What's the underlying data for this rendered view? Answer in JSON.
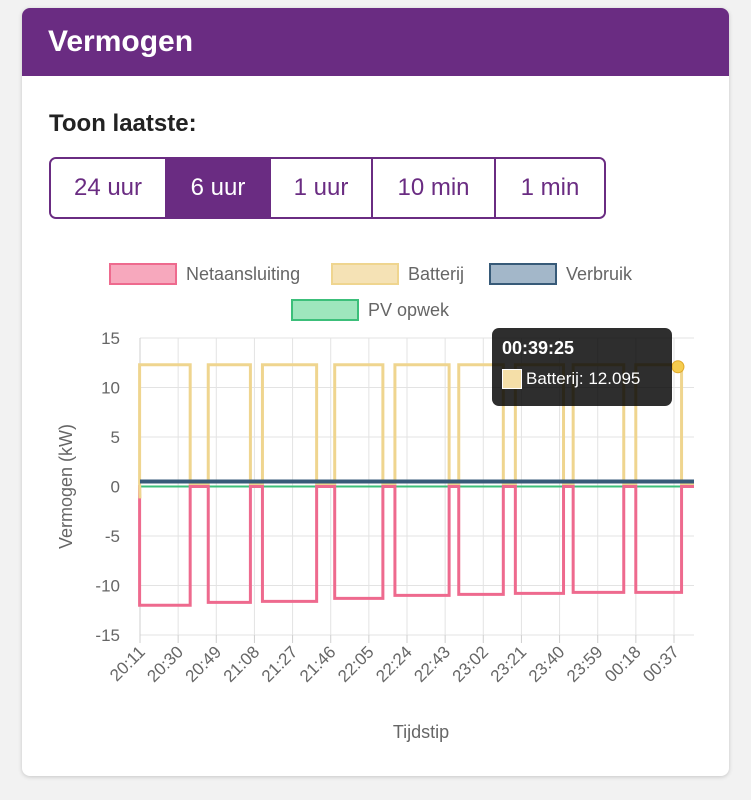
{
  "card": {
    "title": "Vermogen",
    "range_label": "Toon laatste:",
    "range_buttons": [
      {
        "label": "24 uur",
        "active": false
      },
      {
        "label": "6 uur",
        "active": true
      },
      {
        "label": "1 uur",
        "active": false
      },
      {
        "label": "10 min",
        "active": false
      },
      {
        "label": "1 min",
        "active": false
      }
    ]
  },
  "tooltip": {
    "title": "00:39:25",
    "text": "Batterij: 12.095"
  },
  "colors": {
    "accent": "#6a2c82",
    "netaansluiting": "#ee6a8e",
    "batterij": "#efd58f",
    "verbruik": "#375a78",
    "pv": "#3cbf7a"
  },
  "chart_data": {
    "type": "line",
    "ylabel": "Vermogen (kW)",
    "xlabel": "Tijdstip",
    "ylim": [
      -15,
      15
    ],
    "yticks": [
      15,
      10,
      5,
      0,
      -5,
      -10,
      -15
    ],
    "xtick_labels": [
      "20:11",
      "20:30",
      "20:49",
      "21:08",
      "21:27",
      "21:46",
      "22:05",
      "22:24",
      "22:43",
      "23:02",
      "23:21",
      "23:40",
      "23:59",
      "00:18",
      "00:37"
    ],
    "grid": true,
    "legend_position": "top",
    "series": [
      {
        "name": "Netaansluiting",
        "color": "#ee6a8e",
        "fill": "#f7a8bd"
      },
      {
        "name": "Batterij",
        "color": "#efd58f",
        "fill": "#f5e2b5"
      },
      {
        "name": "Verbruik",
        "color": "#375a78",
        "fill": "#a3b7c9"
      },
      {
        "name": "PV opwek",
        "color": "#3cbf7a",
        "fill": "#9ee6bd"
      }
    ],
    "battery_cycles": {
      "x_start": [
        20.18,
        20.75,
        21.2,
        21.8,
        22.3,
        22.83,
        23.3,
        23.78,
        24.3
      ],
      "x_end": [
        20.6,
        21.1,
        21.65,
        22.2,
        22.75,
        23.2,
        23.7,
        24.2,
        24.68
      ],
      "peak_kw": 12.3,
      "idle_kw": 0.3
    },
    "batterij_segments": [
      {
        "from": "20:11",
        "to": "20:19",
        "kw": -1.2
      },
      {
        "from": "20:19",
        "to": "20:34",
        "kw": 12.3
      },
      {
        "from": "20:34",
        "to": "20:42",
        "kw": 0.3
      },
      {
        "from": "20:42",
        "to": "20:56",
        "kw": 12.3
      }
    ],
    "netaansluiting_low_kw": [
      -12.0,
      -11.7,
      -11.6,
      -11.3,
      -11.0,
      -10.9,
      -10.8,
      -10.7,
      -10.7,
      -10.7,
      -10.7,
      -10.6,
      -10.6,
      -10.6,
      -10.6,
      -10.6
    ],
    "verbruik_kw": 0.5,
    "pv_kw": 0.0,
    "tooltip_point": {
      "time": "00:39:25",
      "batterij": 12.095
    }
  }
}
